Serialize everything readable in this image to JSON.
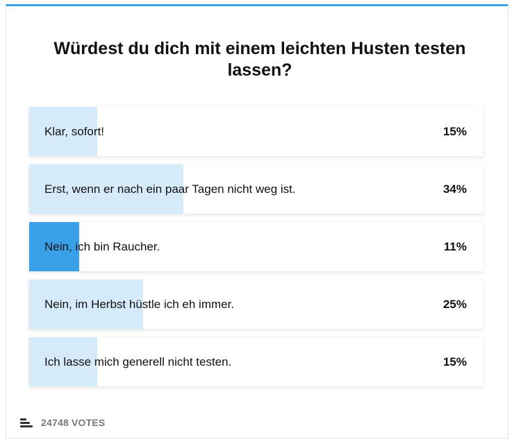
{
  "poll": {
    "title": "Würdest du dich mit einem leichten Husten testen lassen?",
    "accent_color": "#3aa0e8",
    "bar_color": "#d6ebfa",
    "options": [
      {
        "label": "Klar, sofort!",
        "percent_label": "15%",
        "percent": 15,
        "selected": false
      },
      {
        "label": "Erst, wenn er nach ein paar Tagen nicht weg ist.",
        "percent_label": "34%",
        "percent": 34,
        "selected": false
      },
      {
        "label": "Nein, ich bin Raucher.",
        "percent_label": "11%",
        "percent": 11,
        "selected": true
      },
      {
        "label": "Nein, im Herbst hüstle ich eh immer.",
        "percent_label": "25%",
        "percent": 25,
        "selected": false
      },
      {
        "label": "Ich lasse mich generell nicht testen.",
        "percent_label": "15%",
        "percent": 15,
        "selected": false
      }
    ],
    "votes": {
      "icon": "bar-list-icon",
      "text": "24748 VOTES"
    }
  }
}
